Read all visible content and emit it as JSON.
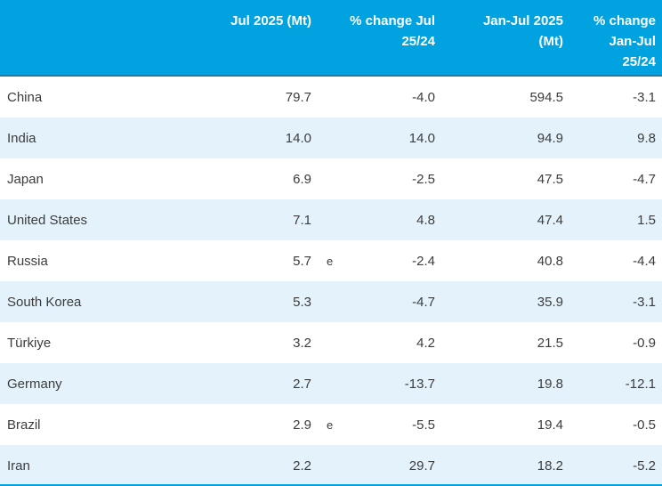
{
  "chart_data": {
    "type": "table",
    "col_headers": [
      "Jul 2025 (Mt)",
      "% change Jul\n25/24",
      "Jan-Jul 2025\n(Mt)",
      "% change\nJan-Jul\n25/24"
    ],
    "rows": [
      {
        "country": "China",
        "jul_2025_mt": "79.7",
        "estimate_flag": "",
        "pct_change_jul_25_24": "-4.0",
        "jan_jul_2025_mt": "594.5",
        "pct_change_jan_jul_25_24": "-3.1"
      },
      {
        "country": "India",
        "jul_2025_mt": "14.0",
        "estimate_flag": "",
        "pct_change_jul_25_24": "14.0",
        "jan_jul_2025_mt": "94.9",
        "pct_change_jan_jul_25_24": "9.8"
      },
      {
        "country": "Japan",
        "jul_2025_mt": "6.9",
        "estimate_flag": "",
        "pct_change_jul_25_24": "-2.5",
        "jan_jul_2025_mt": "47.5",
        "pct_change_jan_jul_25_24": "-4.7"
      },
      {
        "country": "United States",
        "jul_2025_mt": "7.1",
        "estimate_flag": "",
        "pct_change_jul_25_24": "4.8",
        "jan_jul_2025_mt": "47.4",
        "pct_change_jan_jul_25_24": "1.5"
      },
      {
        "country": "Russia",
        "jul_2025_mt": "5.7",
        "estimate_flag": "e",
        "pct_change_jul_25_24": "-2.4",
        "jan_jul_2025_mt": "40.8",
        "pct_change_jan_jul_25_24": "-4.4"
      },
      {
        "country": "South Korea",
        "jul_2025_mt": "5.3",
        "estimate_flag": "",
        "pct_change_jul_25_24": "-4.7",
        "jan_jul_2025_mt": "35.9",
        "pct_change_jan_jul_25_24": "-3.1"
      },
      {
        "country": "Türkiye",
        "jul_2025_mt": "3.2",
        "estimate_flag": "",
        "pct_change_jul_25_24": "4.2",
        "jan_jul_2025_mt": "21.5",
        "pct_change_jan_jul_25_24": "-0.9"
      },
      {
        "country": "Germany",
        "jul_2025_mt": "2.7",
        "estimate_flag": "",
        "pct_change_jul_25_24": "-13.7",
        "jan_jul_2025_mt": "19.8",
        "pct_change_jan_jul_25_24": "-12.1"
      },
      {
        "country": "Brazil",
        "jul_2025_mt": "2.9",
        "estimate_flag": "e",
        "pct_change_jul_25_24": "-5.5",
        "jan_jul_2025_mt": "19.4",
        "pct_change_jan_jul_25_24": "-0.5"
      },
      {
        "country": "Iran",
        "jul_2025_mt": "2.2",
        "estimate_flag": "",
        "pct_change_jul_25_24": "29.7",
        "jan_jul_2025_mt": "18.2",
        "pct_change_jan_jul_25_24": "-5.2"
      }
    ],
    "title": "",
    "layout": {
      "alternating_rows": true,
      "header_position": "top",
      "value_alignment": "right"
    }
  },
  "colors": {
    "header_bg": "#00a3e0",
    "header_text": "#ffffff",
    "header_bottom_border": "#1e7bae",
    "row_bg": "#ffffff",
    "row_alt_bg": "#e4f3fb",
    "cell_text": "#3c3c3c",
    "table_bottom_line": "#00a3e0"
  }
}
